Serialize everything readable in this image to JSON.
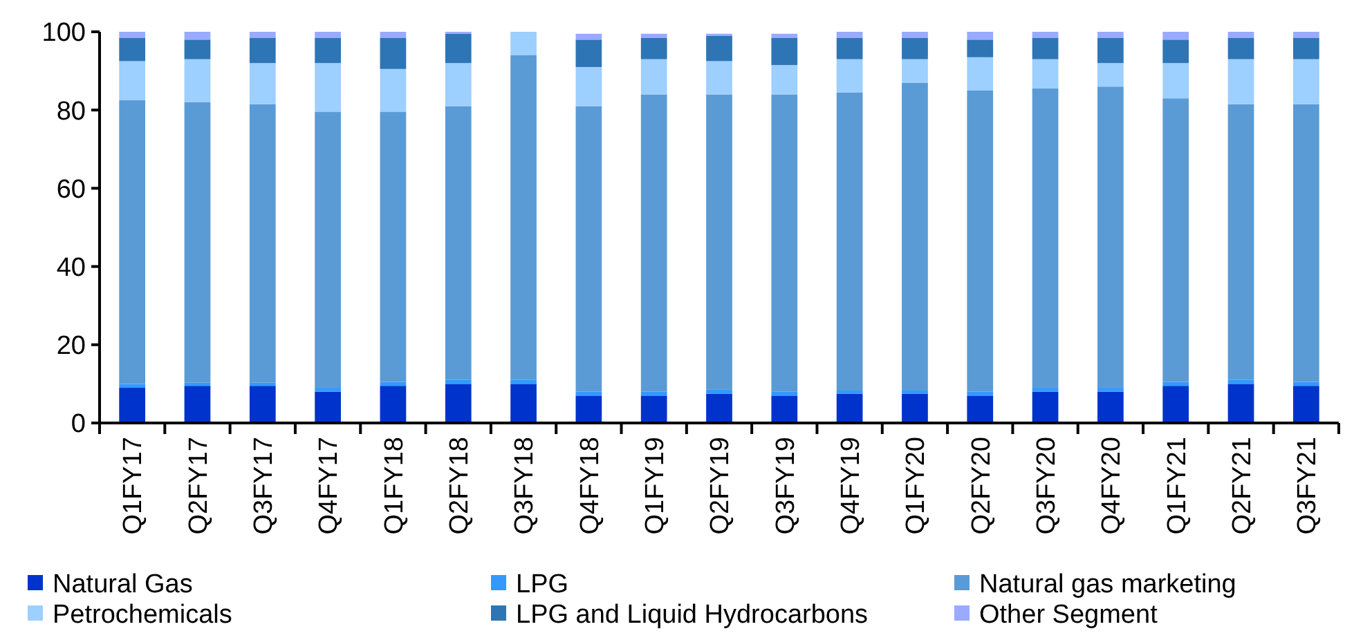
{
  "chart_data": {
    "type": "bar",
    "stacked": true,
    "categories": [
      "Q1FY17",
      "Q2FY17",
      "Q3FY17",
      "Q4FY17",
      "Q1FY18",
      "Q2FY18",
      "Q3FY18",
      "Q4FY18",
      "Q1FY19",
      "Q2FY19",
      "Q3FY19",
      "Q4FY19",
      "Q1FY20",
      "Q2FY20",
      "Q3FY20",
      "Q4FY20",
      "Q1FY21",
      "Q2FY21",
      "Q3FY21"
    ],
    "series": [
      {
        "name": "Natural Gas",
        "color": "#0033cc",
        "values": [
          9,
          9.5,
          9.5,
          8,
          9.5,
          10,
          10,
          7,
          7,
          7.5,
          7,
          7.5,
          7.5,
          7,
          8,
          8,
          9.5,
          10,
          9.5
        ]
      },
      {
        "name": "LPG",
        "color": "#3399ff",
        "values": [
          1,
          0.8,
          0.8,
          1,
          1,
          1,
          1,
          1,
          1,
          1,
          1,
          0.8,
          0.8,
          1,
          1,
          1,
          1,
          1,
          1
        ]
      },
      {
        "name": "Natural gas marketing",
        "color": "#5b9bd5",
        "values": [
          72.5,
          71.7,
          71.2,
          70.5,
          69,
          70,
          83,
          73,
          76,
          75.5,
          76,
          76.2,
          78.7,
          77,
          76.5,
          77,
          72.5,
          70.5,
          71
        ]
      },
      {
        "name": "Petrochemicals",
        "color": "#9dcfff",
        "values": [
          10,
          11,
          10.5,
          12.5,
          11,
          11,
          6,
          10,
          9,
          8.5,
          7.5,
          8.5,
          6,
          8.5,
          7.5,
          6,
          9,
          11.5,
          11.5
        ]
      },
      {
        "name": "LPG and Liquid Hydrocarbons",
        "color": "#2e75b6",
        "values": [
          6,
          5,
          6.5,
          6.5,
          8,
          7.5,
          0,
          7,
          5.5,
          6.5,
          7,
          5.5,
          5.5,
          4.5,
          5.5,
          6.5,
          6,
          5.5,
          5.5
        ]
      },
      {
        "name": "Other Segment",
        "color": "#99aaff",
        "values": [
          1.5,
          2,
          1.5,
          1.5,
          1.5,
          0.5,
          0,
          1.5,
          1,
          0.5,
          1,
          1.5,
          1.5,
          2,
          1.5,
          1.5,
          2,
          1.5,
          1.5
        ]
      }
    ],
    "ylim": [
      0,
      100
    ],
    "yticks": [
      0,
      20,
      40,
      60,
      80,
      100
    ],
    "grid": false,
    "legend": "bottom"
  }
}
